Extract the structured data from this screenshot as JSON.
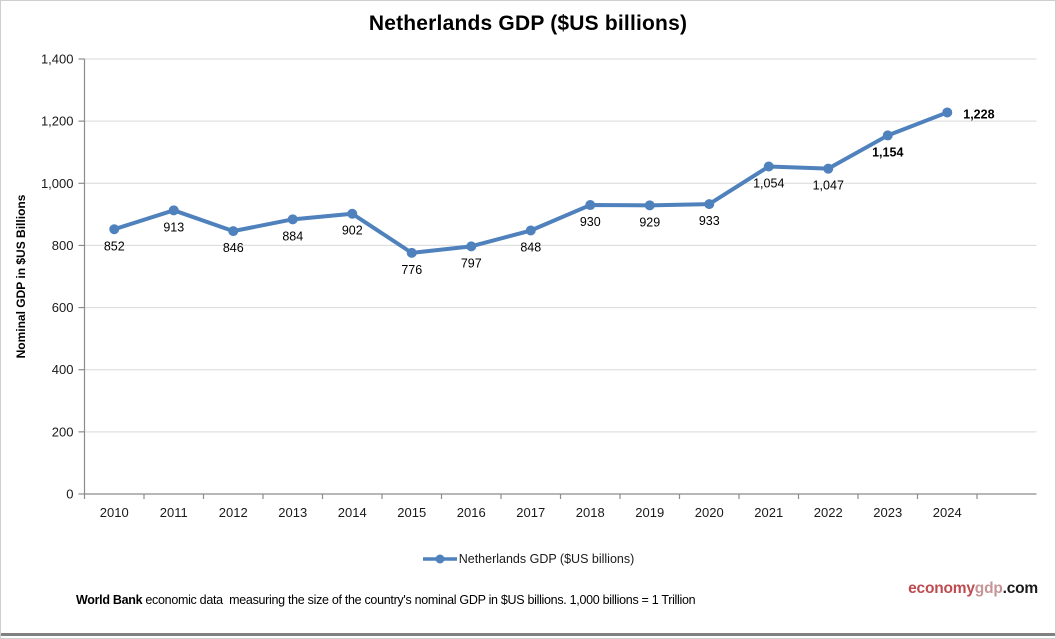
{
  "title": "Netherlands GDP ($US billions)",
  "chart_data": {
    "type": "line",
    "title": "Netherlands GDP ($US billions)",
    "categories": [
      "2010",
      "2011",
      "2012",
      "2013",
      "2014",
      "2015",
      "2016",
      "2017",
      "2018",
      "2019",
      "2020",
      "2021",
      "2022",
      "2023",
      "2024"
    ],
    "series": [
      {
        "name": "Netherlands GDP ($US billions)",
        "values": [
          852,
          913,
          846,
          884,
          902,
          776,
          797,
          848,
          930,
          929,
          933,
          1054,
          1047,
          1154,
          1228
        ]
      }
    ],
    "data_labels": [
      "852",
      "913",
      "846",
      "884",
      "902",
      "776",
      "797",
      "848",
      "930",
      "929",
      "933",
      "1,054",
      "1,047",
      "1,154",
      "1,228"
    ],
    "label_styles": [
      {
        "index": 13,
        "weight": "bold",
        "size": 14
      },
      {
        "index": 14,
        "weight": "bold",
        "size": 17,
        "position": "right"
      }
    ],
    "xlabel": "",
    "ylabel": "Nominal GDP in $US Billions",
    "ylim": [
      0,
      1400
    ],
    "ytick_step": 200,
    "ytick_labels": [
      "0",
      "200",
      "400",
      "600",
      "800",
      "1,000",
      "1,200",
      "1,400"
    ],
    "grid": true,
    "legend_position": "bottom",
    "line_color": "#4F81BD"
  },
  "legend": {
    "label": "Netherlands GDP ($US billions)"
  },
  "footer": {
    "source_bold": "World Bank",
    "source_text": " economic data  measuring the size of the country's nominal GDP in $US billions. 1,000 billions = 1 Trillion"
  },
  "brand": {
    "part1": "economy",
    "part2": "gdp",
    "part3": ".com"
  },
  "colors": {
    "line": "#4F81BD",
    "gridline": "#D9D9D9",
    "axis": "#8C8C8C",
    "brand_primary": "#BE4B50",
    "brand_secondary": "#C59597",
    "brand_suffix": "#1a1a1a",
    "bottom_rule": "#808080"
  }
}
